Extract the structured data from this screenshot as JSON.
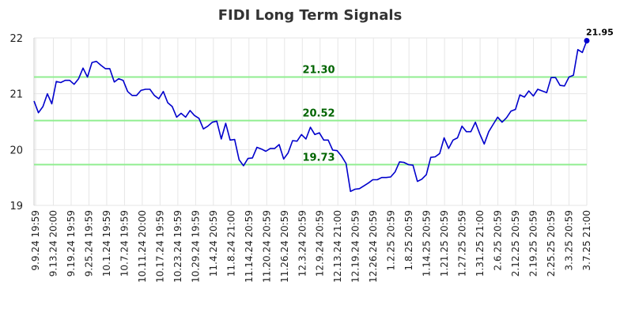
{
  "chart_data": {
    "type": "line",
    "title": "FIDI Long Term Signals",
    "xlabel": "",
    "ylabel": "",
    "ylim": [
      19,
      22
    ],
    "y_ticks": [
      "19",
      "20",
      "21",
      "22"
    ],
    "grid": true,
    "colors": {
      "line": "#0000cc",
      "signal": "#90ee90",
      "signal_text": "#006400",
      "grid": "#e6e6e6"
    },
    "x_ticks": [
      "9.9.24 19:59",
      "9.13.24 20:00",
      "9.19.24 19:59",
      "9.25.24 19:59",
      "10.1.24 19:59",
      "10.7.24 19:59",
      "10.11.24 20:00",
      "10.17.24 19:59",
      "10.23.24 19:59",
      "10.29.24 19:59",
      "11.4.24 20:59",
      "11.8.24 21:00",
      "11.14.24 20:59",
      "11.20.24 20:59",
      "11.26.24 20:59",
      "12.3.24 20:59",
      "12.9.24 20:59",
      "12.13.24 21:00",
      "12.19.24 20:59",
      "12.26.24 20:59",
      "1.2.25 20:59",
      "1.8.25 20:59",
      "1.14.25 20:59",
      "1.21.25 20:59",
      "1.27.25 20:59",
      "1.31.25 21:00",
      "2.6.25 20:59",
      "2.12.25 20:59",
      "2.19.25 20:59",
      "2.25.25 20:59",
      "3.3.25 20:59",
      "3.7.25 21:00"
    ],
    "signal_lines": [
      {
        "value": 21.3,
        "label": "21.30"
      },
      {
        "value": 20.52,
        "label": "20.52"
      },
      {
        "value": 19.73,
        "label": "19.73"
      }
    ],
    "last_value_label": "21.95",
    "series": [
      {
        "values": [
          20.87,
          20.66,
          20.77,
          21.0,
          20.82,
          21.22,
          21.2,
          21.24,
          21.24,
          21.17,
          21.27,
          21.46,
          21.3,
          21.56,
          21.58,
          21.51,
          21.45,
          21.45,
          21.21,
          21.27,
          21.24,
          21.04,
          20.97,
          20.97,
          21.06,
          21.08,
          21.08,
          20.97,
          20.91,
          21.04,
          20.84,
          20.77,
          20.58,
          20.65,
          20.58,
          20.7,
          20.61,
          20.56,
          20.37,
          20.42,
          20.49,
          20.51,
          20.19,
          20.47,
          20.17,
          20.18,
          19.82,
          19.71,
          19.84,
          19.85,
          20.04,
          20.01,
          19.97,
          20.02,
          20.02,
          20.09,
          19.83,
          19.94,
          20.16,
          20.15,
          20.27,
          20.19,
          20.4,
          20.27,
          20.3,
          20.17,
          20.17,
          19.99,
          19.98,
          19.88,
          19.75,
          19.25,
          19.29,
          19.3,
          19.35,
          19.4,
          19.46,
          19.46,
          19.5,
          19.5,
          19.51,
          19.6,
          19.78,
          19.77,
          19.73,
          19.72,
          19.43,
          19.47,
          19.55,
          19.86,
          19.87,
          19.93,
          20.21,
          20.02,
          20.17,
          20.21,
          20.42,
          20.32,
          20.32,
          20.49,
          20.28,
          20.1,
          20.32,
          20.45,
          20.58,
          20.49,
          20.57,
          20.69,
          20.72,
          20.98,
          20.94,
          21.05,
          20.96,
          21.08,
          21.05,
          21.02,
          21.29,
          21.29,
          21.15,
          21.14,
          21.3,
          21.33,
          21.79,
          21.74,
          21.95
        ]
      }
    ]
  }
}
